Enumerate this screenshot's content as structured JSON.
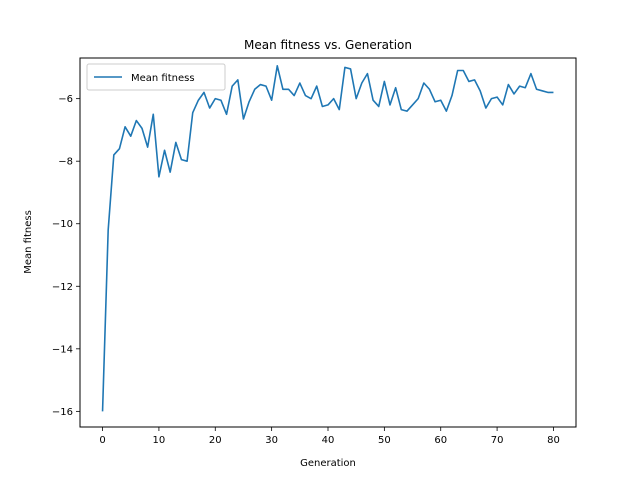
{
  "chart_data": {
    "type": "line",
    "title": "Mean fitness vs. Generation",
    "xlabel": "Generation",
    "ylabel": "Mean fitness",
    "xlim": [
      -4,
      84
    ],
    "ylim": [
      -16.5,
      -4.7
    ],
    "xticks": [
      0,
      10,
      20,
      30,
      40,
      50,
      60,
      70,
      80
    ],
    "yticks": [
      -16,
      -14,
      -12,
      -10,
      -8,
      -6
    ],
    "grid": false,
    "legend": {
      "placement": "top-left",
      "entries": [
        "Mean fitness"
      ]
    },
    "series": [
      {
        "name": "Mean fitness",
        "color": "#1f77b4",
        "x": [
          0,
          1,
          2,
          3,
          4,
          5,
          6,
          7,
          8,
          9,
          10,
          11,
          12,
          13,
          14,
          15,
          16,
          17,
          18,
          19,
          20,
          21,
          22,
          23,
          24,
          25,
          26,
          27,
          28,
          29,
          30,
          31,
          32,
          33,
          34,
          35,
          36,
          37,
          38,
          39,
          40,
          41,
          42,
          43,
          44,
          45,
          46,
          47,
          48,
          49,
          50,
          51,
          52,
          53,
          54,
          55,
          56,
          57,
          58,
          59,
          60,
          61,
          62,
          63,
          64,
          65,
          66,
          67,
          68,
          69,
          70,
          71,
          72,
          73,
          74,
          75,
          76,
          77,
          78,
          79,
          80
        ],
        "y": [
          -16.0,
          -10.2,
          -7.8,
          -7.6,
          -6.9,
          -7.2,
          -6.7,
          -6.95,
          -7.55,
          -6.5,
          -8.5,
          -7.65,
          -8.35,
          -7.4,
          -7.95,
          -8.0,
          -6.45,
          -6.05,
          -5.8,
          -6.3,
          -6.0,
          -6.05,
          -6.5,
          -5.6,
          -5.4,
          -6.65,
          -6.1,
          -5.7,
          -5.55,
          -5.6,
          -6.05,
          -4.95,
          -5.7,
          -5.7,
          -5.9,
          -5.5,
          -5.9,
          -6.0,
          -5.6,
          -6.25,
          -6.2,
          -6.0,
          -6.35,
          -5.0,
          -5.05,
          -6.0,
          -5.5,
          -5.2,
          -6.05,
          -6.25,
          -5.45,
          -6.2,
          -5.65,
          -6.35,
          -6.4,
          -6.2,
          -6.0,
          -5.5,
          -5.7,
          -6.1,
          -6.05,
          -6.4,
          -5.9,
          -5.1,
          -5.1,
          -5.45,
          -5.4,
          -5.75,
          -6.3,
          -6.0,
          -5.95,
          -6.2,
          -5.55,
          -5.85,
          -5.6,
          -5.65,
          -5.2,
          -5.7,
          -5.75,
          -5.8,
          -5.8
        ]
      }
    ]
  }
}
